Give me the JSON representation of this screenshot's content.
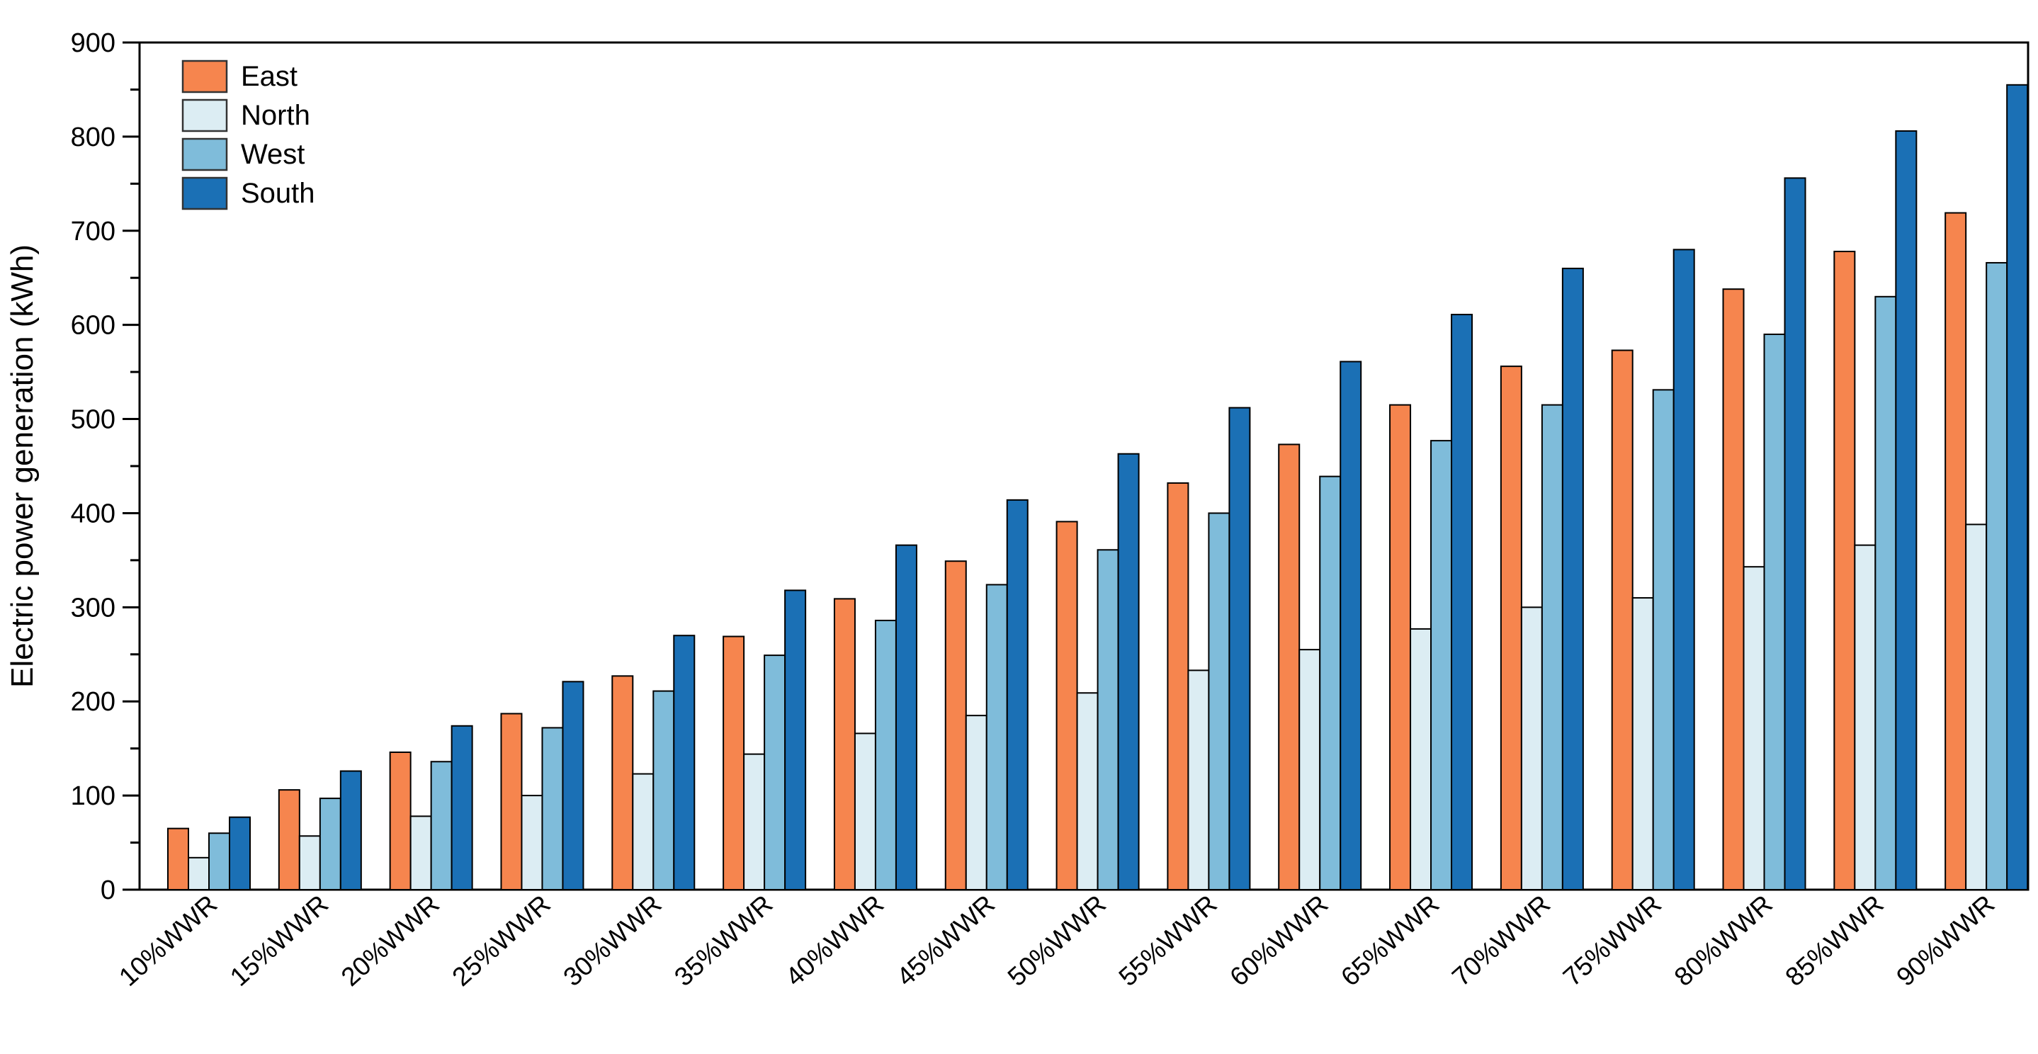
{
  "chart_data": {
    "type": "bar",
    "title": "",
    "xlabel": "",
    "ylabel": "Electric power generation (kWh)",
    "ylim": [
      0,
      900
    ],
    "ytick_step": 100,
    "yminor_step": 50,
    "ytick_labels": [
      "0",
      "100",
      "200",
      "300",
      "400",
      "500",
      "600",
      "700",
      "800",
      "900"
    ],
    "grid": false,
    "legend_position": "top-left-inside",
    "background_color": "#ffffff",
    "axis_color": "#000000",
    "bar_edge_color": "#000000",
    "categories": [
      "10%WWR",
      "15%WWR",
      "20%WWR",
      "25%WWR",
      "30%WWR",
      "35%WWR",
      "40%WWR",
      "45%WWR",
      "50%WWR",
      "55%WWR",
      "60%WWR",
      "65%WWR",
      "70%WWR",
      "75%WWR",
      "80%WWR",
      "85%WWR",
      "90%WWR"
    ],
    "series": [
      {
        "name": "East",
        "color": "#F6854E",
        "values": [
          65,
          106,
          146,
          187,
          227,
          269,
          309,
          349,
          391,
          432,
          473,
          515,
          556,
          573,
          638,
          678,
          719
        ]
      },
      {
        "name": "North",
        "color": "#DCEDF3",
        "values": [
          34,
          57,
          78,
          100,
          123,
          144,
          166,
          185,
          209,
          233,
          255,
          277,
          300,
          310,
          343,
          366,
          388
        ]
      },
      {
        "name": "West",
        "color": "#7FBCDA",
        "values": [
          60,
          97,
          136,
          172,
          211,
          249,
          286,
          324,
          361,
          400,
          439,
          477,
          515,
          531,
          590,
          630,
          666
        ]
      },
      {
        "name": "South",
        "color": "#1B70B5",
        "values": [
          77,
          126,
          174,
          221,
          270,
          318,
          366,
          414,
          463,
          512,
          561,
          611,
          660,
          680,
          756,
          806,
          855
        ]
      }
    ]
  }
}
